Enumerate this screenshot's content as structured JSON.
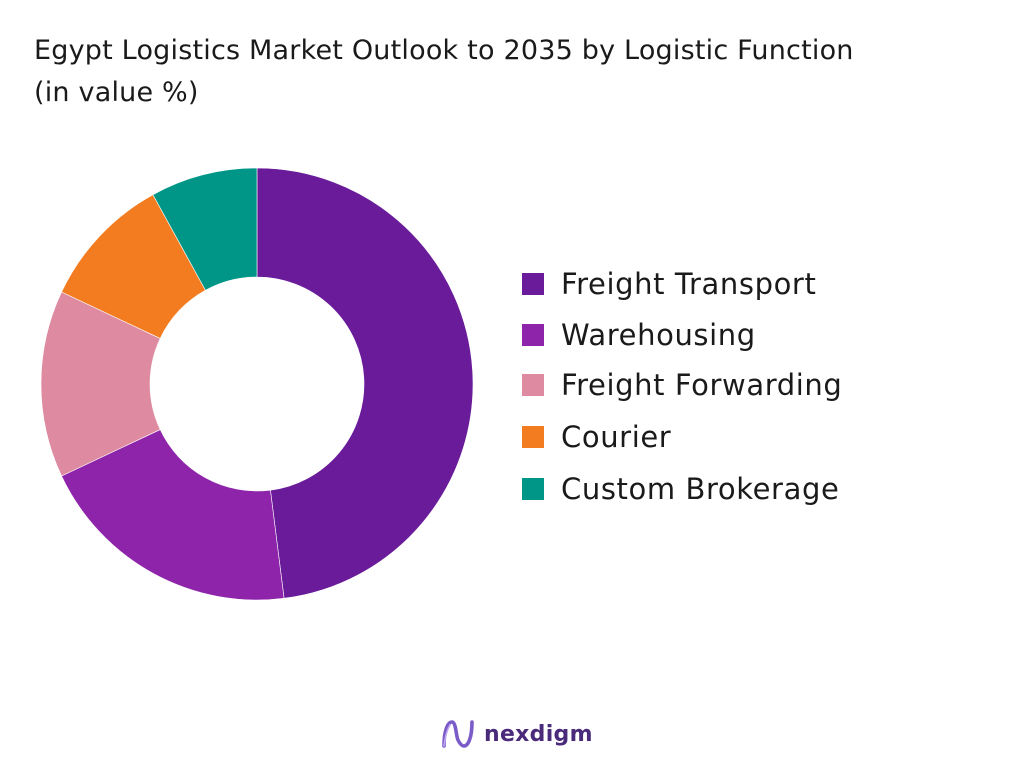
{
  "chart_data": {
    "type": "pie",
    "variant": "donut",
    "title_line1": "Egypt Logistics Market Outlook to 2035 by Logistic Function",
    "title_line2": "(in value %)",
    "categories": [
      "Freight Transport",
      "Warehousing",
      "Freight Forwarding",
      "Courier",
      "Custom Brokerage"
    ],
    "values": [
      48,
      20,
      14,
      10,
      8
    ],
    "colors": [
      "#6a1b9a",
      "#8e24aa",
      "#de8aa0",
      "#f47c20",
      "#009687"
    ],
    "legend_position": "right",
    "data_labels": false
  },
  "brand": {
    "name": "nexdigm",
    "icon": "nexdigm-logo-icon"
  }
}
